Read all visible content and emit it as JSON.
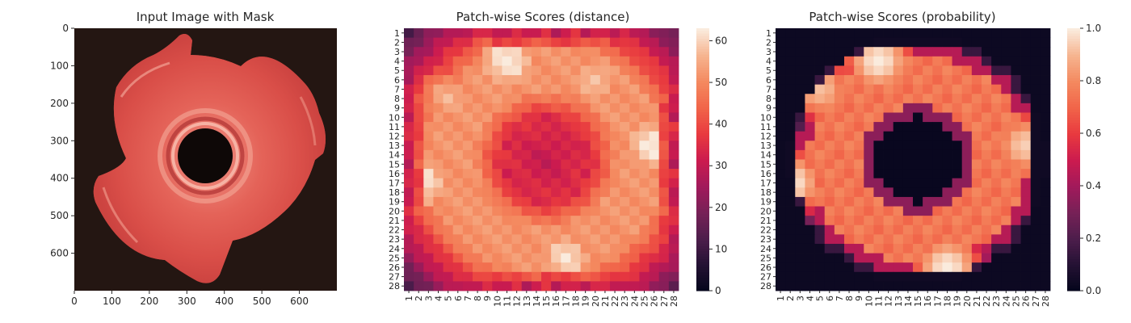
{
  "chart_data": [
    {
      "type": "image",
      "title": "Input Image with Mask",
      "xticks": [
        0,
        100,
        200,
        300,
        400,
        500,
        600
      ],
      "yticks": [
        0,
        100,
        200,
        300,
        400,
        500,
        600
      ],
      "xlim": [
        0,
        700
      ],
      "ylim": [
        700,
        0
      ],
      "colors": {
        "background": "#241612",
        "part": "#e0574f",
        "part_light": "#f28d7f",
        "part_dark": "#b73b39"
      }
    },
    {
      "type": "heatmap",
      "title": "Patch-wise Scores (distance)",
      "rows": 28,
      "cols": 28,
      "row_labels": [
        "1",
        "2",
        "3",
        "4",
        "5",
        "6",
        "7",
        "8",
        "9",
        "10",
        "11",
        "12",
        "13",
        "14",
        "15",
        "16",
        "17",
        "18",
        "19",
        "20",
        "21",
        "22",
        "23",
        "24",
        "25",
        "26",
        "27",
        "28"
      ],
      "col_labels": [
        "1",
        "2",
        "3",
        "4",
        "5",
        "6",
        "7",
        "8",
        "9",
        "10",
        "11",
        "12",
        "13",
        "14",
        "15",
        "16",
        "17",
        "18",
        "19",
        "20",
        "21",
        "22",
        "23",
        "24",
        "25",
        "26",
        "27",
        "28"
      ],
      "colorbar": {
        "min": 0,
        "max": 63,
        "ticks": [
          0,
          10,
          20,
          30,
          40,
          50,
          60
        ]
      },
      "colormap": "rocket",
      "field": {
        "center": [
          14.5,
          15
        ],
        "ring_min_value": 33,
        "ring_peak_value": 52,
        "edge_value": 22,
        "hotspots": [
          {
            "row": 4,
            "col": 11,
            "value": 63
          },
          {
            "row": 6,
            "col": 20,
            "value": 58
          },
          {
            "row": 13,
            "col": 26,
            "value": 63
          },
          {
            "row": 17,
            "col": 2,
            "value": 63
          },
          {
            "row": 25,
            "col": 17,
            "value": 61
          },
          {
            "row": 8,
            "col": 5,
            "value": 56
          }
        ]
      }
    },
    {
      "type": "heatmap",
      "title": "Patch-wise Scores (probability)",
      "rows": 28,
      "cols": 28,
      "row_labels": [
        "1",
        "2",
        "3",
        "4",
        "5",
        "6",
        "7",
        "8",
        "9",
        "10",
        "11",
        "12",
        "13",
        "14",
        "15",
        "16",
        "17",
        "18",
        "19",
        "20",
        "21",
        "22",
        "23",
        "24",
        "25",
        "26",
        "27",
        "28"
      ],
      "col_labels": [
        "1",
        "2",
        "3",
        "4",
        "5",
        "6",
        "7",
        "8",
        "9",
        "10",
        "11",
        "12",
        "13",
        "14",
        "15",
        "16",
        "17",
        "18",
        "19",
        "20",
        "21",
        "22",
        "23",
        "24",
        "25",
        "26",
        "27",
        "28"
      ],
      "colorbar": {
        "min": 0.0,
        "max": 1.0,
        "ticks": [
          "0.0",
          "0.2",
          "0.4",
          "0.6",
          "0.8",
          "1.0"
        ]
      },
      "colormap": "rocket",
      "field": {
        "center": [
          14.5,
          15
        ],
        "hole_value": 0.02,
        "ring_value": 0.75,
        "edge_value": 0.03,
        "hotspots": [
          {
            "row": 4,
            "col": 11,
            "value": 1.0
          },
          {
            "row": 13,
            "col": 26,
            "value": 0.95
          },
          {
            "row": 17,
            "col": 2,
            "value": 1.0
          },
          {
            "row": 26,
            "col": 18,
            "value": 1.0
          },
          {
            "row": 7,
            "col": 5,
            "value": 0.92
          }
        ]
      }
    }
  ]
}
